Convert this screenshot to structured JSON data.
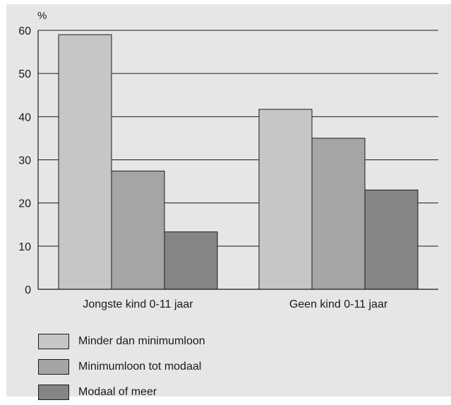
{
  "chart_data": {
    "type": "bar",
    "y_unit": "%",
    "categories": [
      "Jongste kind 0-11 jaar",
      "Geen kind 0-11 jaar"
    ],
    "series": [
      {
        "name": "Minder dan minimumloon",
        "values": [
          59,
          41.7
        ],
        "color": "#c6c6c6"
      },
      {
        "name": "Minimumloon tot modaal",
        "values": [
          27.4,
          35
        ],
        "color": "#a5a5a5"
      },
      {
        "name": "Modaal of meer",
        "values": [
          13.3,
          23
        ],
        "color": "#858585"
      }
    ],
    "ylim": [
      0,
      60
    ],
    "yticks": [
      0,
      10,
      20,
      30,
      40,
      50,
      60
    ],
    "grid": true,
    "legend_position": "bottom-left"
  }
}
